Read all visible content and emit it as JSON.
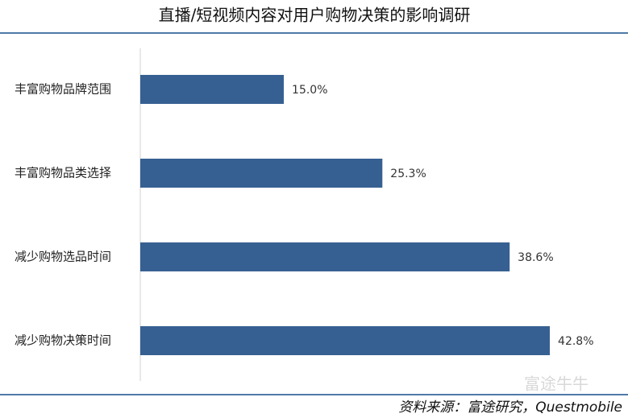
{
  "chart_data": {
    "type": "bar",
    "orientation": "horizontal",
    "title": "直播/短视频内容对用户购物决策的影响调研",
    "categories": [
      "丰富购物品牌范围",
      "丰富购物品类选择",
      "减少购物选品时间",
      "减少购物决策时间"
    ],
    "values": [
      15.0,
      25.3,
      38.6,
      42.8
    ],
    "value_labels": [
      "15.0%",
      "25.3%",
      "38.6%",
      "42.8%"
    ],
    "color": "#376092",
    "source": "资料来源：富途研究，Questmobile",
    "watermark": "富途牛牛"
  }
}
